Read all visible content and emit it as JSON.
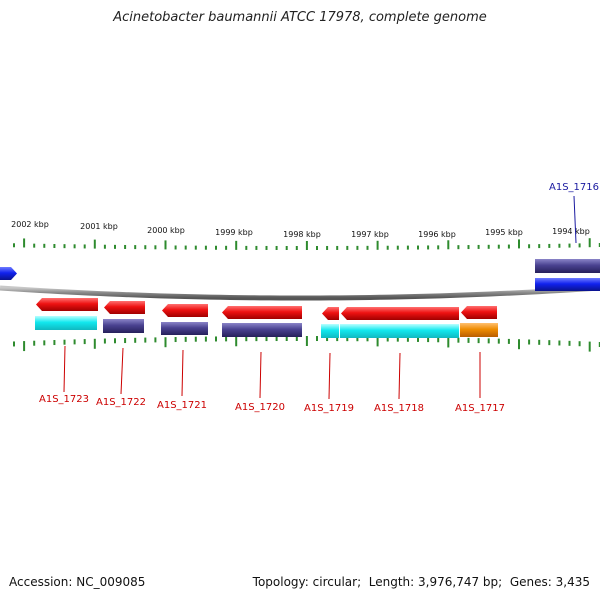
{
  "title": "Acinetobacter baumannii ATCC 17978, complete genome",
  "footer": {
    "accession_label": "Accession:",
    "accession": "NC_009085",
    "topology_label": "Topology:",
    "topology": "circular",
    "length_label": "Length:",
    "length": "3,976,747 bp",
    "genes_label": "Genes:",
    "genes": "3,435"
  },
  "colors": {
    "ticks": "#2e8b2e",
    "backbone": "#8c8c8c",
    "gene_red": "#ee1111",
    "gene_cyan": "#11e8ee",
    "gene_navy": "#4a4290",
    "gene_blue": "#1122ee",
    "gene_orange": "#ee8c00",
    "label_red": "#cc0000",
    "label_blue": "#1a1aa0"
  },
  "scale": {
    "labels": [
      "2002 kbp",
      "2001 kbp",
      "2000 kbp",
      "1999 kbp",
      "1998 kbp",
      "1997 kbp",
      "1996 kbp",
      "1995 kbp",
      "1994 kbp"
    ]
  },
  "genes": [
    {
      "name": "A1S_1723",
      "row": "bottom"
    },
    {
      "name": "A1S_1722",
      "row": "bottom"
    },
    {
      "name": "A1S_1721",
      "row": "bottom"
    },
    {
      "name": "A1S_1720",
      "row": "bottom"
    },
    {
      "name": "A1S_1719",
      "row": "bottom"
    },
    {
      "name": "A1S_1718",
      "row": "bottom"
    },
    {
      "name": "A1S_1717",
      "row": "bottom"
    },
    {
      "name": "A1S_1716",
      "row": "top"
    }
  ]
}
